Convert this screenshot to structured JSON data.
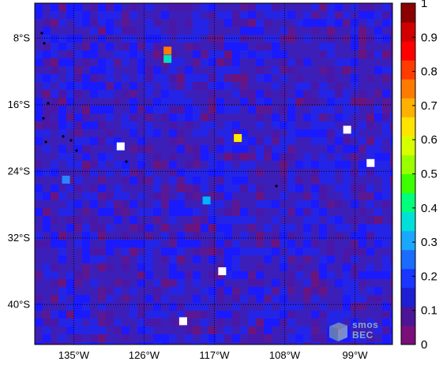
{
  "title_fragment": "",
  "map": {
    "lat_labels": [
      "8°S",
      "16°S",
      "24°S",
      "32°S",
      "40°S"
    ],
    "lon_labels": [
      "135°W",
      "126°W",
      "117°W",
      "108°W",
      "99°W"
    ],
    "background_color": "#3c1fb8",
    "cell_colors": [
      "#3c1fb8",
      "#2424e6",
      "#1a1aff",
      "#4a18a8",
      "#5a1894",
      "#6a1480"
    ],
    "highlight_cells": [
      {
        "lat": "9.5S",
        "lon": "123W",
        "value": 0.7,
        "color": "#ff7a00"
      },
      {
        "lat": "10.5S",
        "lon": "123W",
        "value": 0.4,
        "color": "#00e0c0"
      },
      {
        "lat": "20S",
        "lon": "114W",
        "value": 0.62,
        "color": "#ffee00"
      },
      {
        "lat": "27.5S",
        "lon": "118W",
        "value": 0.42,
        "color": "#00b4ff"
      },
      {
        "lat": "25S",
        "lon": "136W",
        "value": 0.35,
        "color": "#2a86ff"
      }
    ],
    "white_cells": [
      "21S 129W",
      "19S 100W",
      "23S 97W",
      "36S 116W",
      "42S 121W"
    ]
  },
  "colorbar": {
    "ticks": [
      "0",
      "0.1",
      "0.2",
      "0.3",
      "0.4",
      "0.5",
      "0.6",
      "0.7",
      "0.8",
      "0.9",
      "1"
    ],
    "colors": [
      "#7a0f7a",
      "#4b1596",
      "#1e1ed2",
      "#1a36ff",
      "#1a6cff",
      "#1aa8ff",
      "#00e0d8",
      "#00ff7a",
      "#3cff00",
      "#9aff00",
      "#d8ff00",
      "#ffe400",
      "#ffb000",
      "#ff7a00",
      "#ff3c00",
      "#ff0000",
      "#d00000",
      "#8b0000"
    ]
  },
  "watermark": {
    "line1": "smos",
    "line2": "BEC"
  }
}
